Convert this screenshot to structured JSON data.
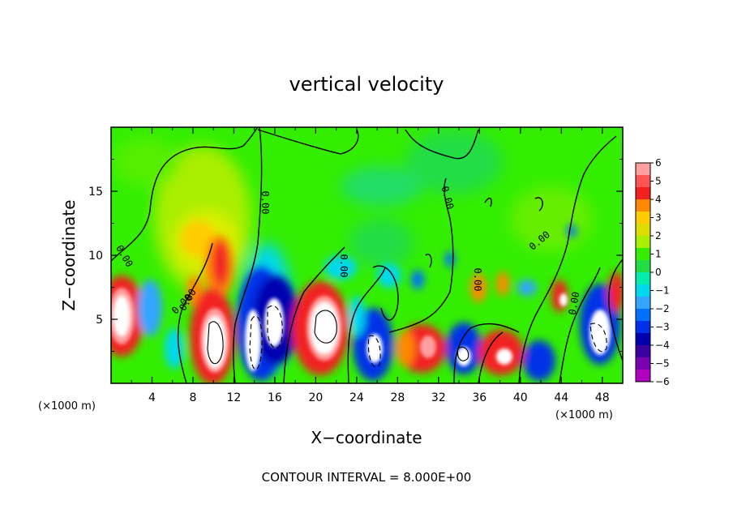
{
  "chart_data": {
    "type": "heatmap",
    "title": "vertical velocity",
    "xlabel": "X−coordinate",
    "ylabel": "Z−coordinate",
    "x_unit_left": "(×1000 m)",
    "x_unit_right": "(×1000 m)",
    "footer": "CONTOUR INTERVAL = 8.000E+00",
    "xlim": [
      0,
      50
    ],
    "ylim": [
      0,
      20
    ],
    "xticks": [
      4,
      8,
      12,
      16,
      20,
      24,
      28,
      32,
      36,
      40,
      44,
      48
    ],
    "xtick_labels": [
      "4",
      "8",
      "12",
      "16",
      "20",
      "24",
      "28",
      "32",
      "36",
      "40",
      "44",
      "48"
    ],
    "yticks": [
      5,
      10,
      15
    ],
    "ytick_labels": [
      "5",
      "10",
      "15"
    ],
    "colorbar": {
      "min": -6,
      "max": 6,
      "tick_labels": [
        "6",
        "5",
        "4",
        "3",
        "2",
        "1",
        "0",
        "−1",
        "−2",
        "−3",
        "−4",
        "−5",
        "−6"
      ],
      "colors": [
        "#ff9f9f",
        "#ff5454",
        "#f22020",
        "#ff8800",
        "#ffcc00",
        "#dddd00",
        "#aaee00",
        "#33ee00",
        "#22dd44",
        "#00eeaa",
        "#00d8ee",
        "#33a5ff",
        "#0070ff",
        "#0030e8",
        "#0000b0",
        "#3a00a0",
        "#7a00b0",
        "#b000c0"
      ]
    },
    "contour_labels": [
      "0.00",
      "0.00",
      "0.00",
      "0.00",
      "0.00",
      "0.00",
      "0.00",
      "0.00",
      "0.00"
    ],
    "grid": false
  }
}
